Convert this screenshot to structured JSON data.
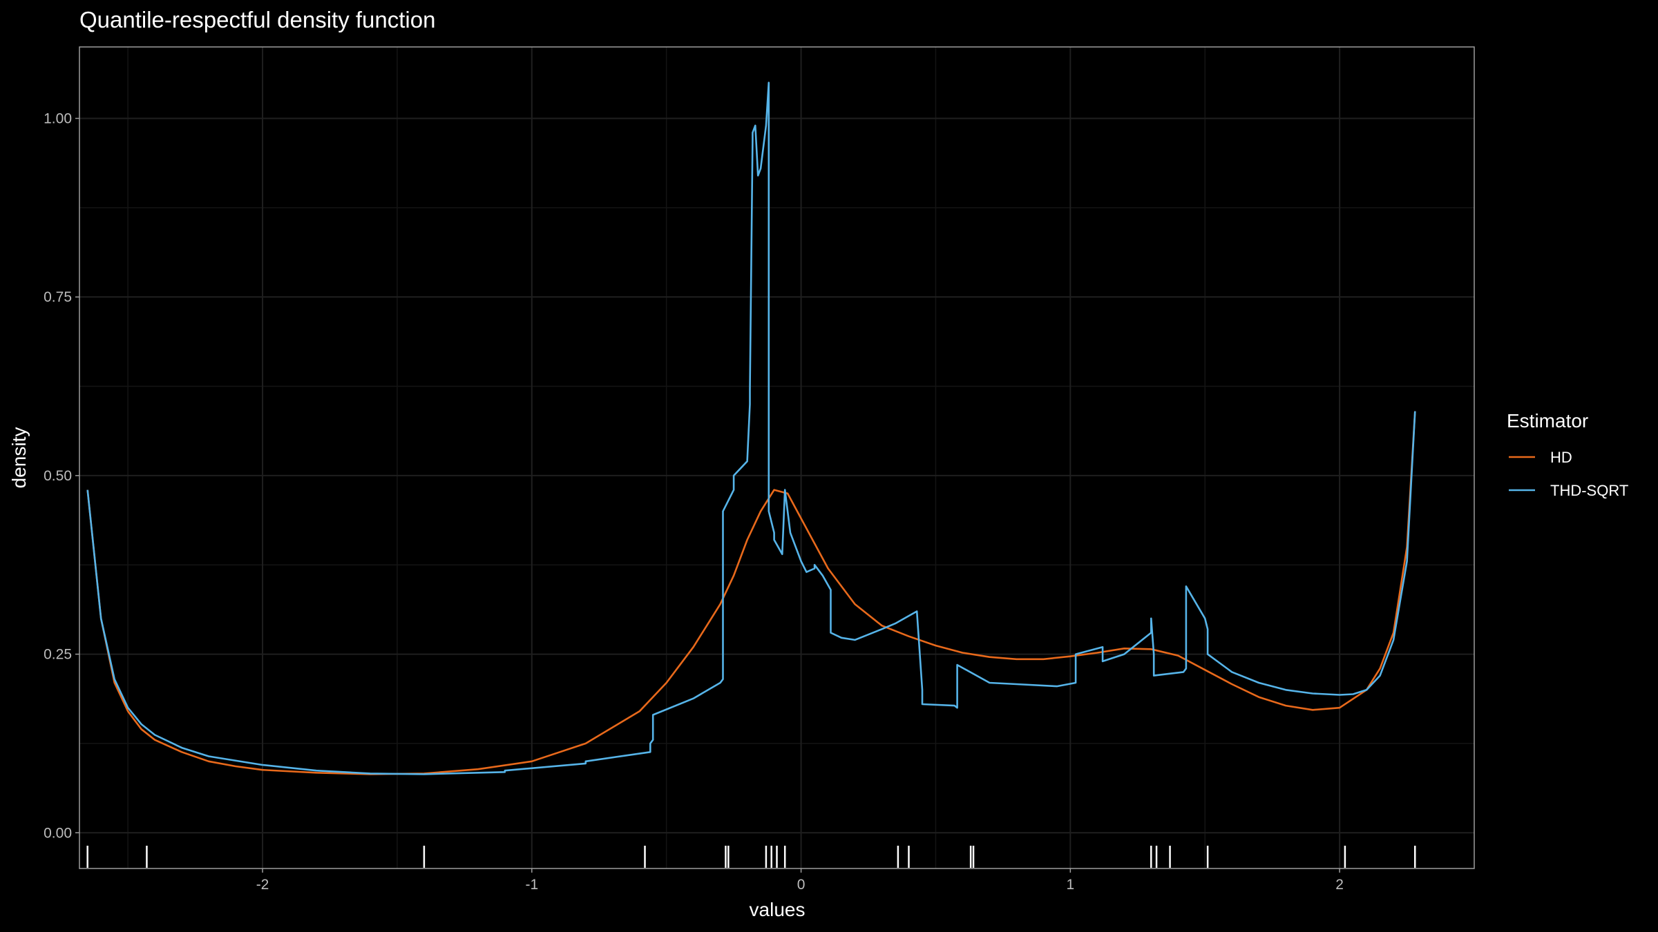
{
  "chart_data": {
    "type": "line",
    "title": "Quantile-respectful density function",
    "xlabel": "values",
    "ylabel": "density",
    "xlim": [
      -2.68,
      2.5
    ],
    "ylim": [
      -0.05,
      1.1
    ],
    "x_ticks": [
      -2,
      -1,
      0,
      1,
      2
    ],
    "x_tick_labels": [
      "-2",
      "-1",
      "0",
      "1",
      "2"
    ],
    "y_ticks": [
      0,
      0.25,
      0.5,
      0.75,
      1.0
    ],
    "y_tick_labels": [
      "0.00",
      "0.25",
      "0.50",
      "0.75",
      "1.00"
    ],
    "grid": true,
    "legend": {
      "title": "Estimator",
      "position": "right"
    },
    "rug": [
      -2.65,
      -2.43,
      -1.4,
      -0.58,
      -0.28,
      -0.27,
      -0.13,
      -0.11,
      -0.09,
      -0.06,
      0.36,
      0.4,
      0.63,
      0.64,
      1.3,
      1.32,
      1.37,
      1.51,
      2.02,
      2.28
    ],
    "series": [
      {
        "name": "HD",
        "color": "#e8691b",
        "x": [
          -2.65,
          -2.6,
          -2.55,
          -2.5,
          -2.45,
          -2.4,
          -2.3,
          -2.2,
          -2.1,
          -2.0,
          -1.8,
          -1.6,
          -1.4,
          -1.2,
          -1.0,
          -0.8,
          -0.6,
          -0.5,
          -0.4,
          -0.3,
          -0.25,
          -0.2,
          -0.15,
          -0.1,
          -0.05,
          0.0,
          0.1,
          0.2,
          0.3,
          0.4,
          0.5,
          0.6,
          0.7,
          0.8,
          0.9,
          1.0,
          1.1,
          1.2,
          1.3,
          1.4,
          1.5,
          1.6,
          1.7,
          1.8,
          1.9,
          2.0,
          2.1,
          2.15,
          2.2,
          2.25,
          2.28
        ],
        "y": [
          0.48,
          0.3,
          0.21,
          0.17,
          0.145,
          0.13,
          0.113,
          0.1,
          0.093,
          0.088,
          0.084,
          0.082,
          0.083,
          0.089,
          0.1,
          0.125,
          0.17,
          0.21,
          0.26,
          0.32,
          0.36,
          0.41,
          0.45,
          0.48,
          0.475,
          0.44,
          0.37,
          0.32,
          0.29,
          0.275,
          0.262,
          0.252,
          0.246,
          0.243,
          0.243,
          0.247,
          0.252,
          0.258,
          0.257,
          0.248,
          0.228,
          0.208,
          0.19,
          0.178,
          0.172,
          0.175,
          0.2,
          0.23,
          0.28,
          0.4,
          0.59
        ]
      },
      {
        "name": "THD-SQRT",
        "color": "#56b4e9",
        "x": [
          -2.65,
          -2.6,
          -2.55,
          -2.5,
          -2.45,
          -2.4,
          -2.3,
          -2.2,
          -2.0,
          -1.8,
          -1.6,
          -1.4,
          -1.1,
          -1.1,
          -0.8,
          -0.8,
          -0.56,
          -0.56,
          -0.55,
          -0.55,
          -0.4,
          -0.3,
          -0.29,
          -0.29,
          -0.25,
          -0.25,
          -0.2,
          -0.19,
          -0.19,
          -0.18,
          -0.18,
          -0.17,
          -0.16,
          -0.15,
          -0.13,
          -0.12,
          -0.12,
          -0.1,
          -0.1,
          -0.07,
          -0.06,
          -0.04,
          0.0,
          0.02,
          0.05,
          0.05,
          0.08,
          0.11,
          0.11,
          0.15,
          0.2,
          0.3,
          0.35,
          0.43,
          0.45,
          0.45,
          0.57,
          0.58,
          0.58,
          0.7,
          0.8,
          0.95,
          1.02,
          1.02,
          1.12,
          1.12,
          1.2,
          1.3,
          1.3,
          1.31,
          1.31,
          1.42,
          1.43,
          1.43,
          1.5,
          1.51,
          1.51,
          1.6,
          1.7,
          1.8,
          1.9,
          2.0,
          2.05,
          2.1,
          2.15,
          2.2,
          2.25,
          2.28
        ],
        "y": [
          0.48,
          0.3,
          0.215,
          0.175,
          0.152,
          0.137,
          0.119,
          0.107,
          0.095,
          0.087,
          0.083,
          0.082,
          0.085,
          0.087,
          0.097,
          0.1,
          0.113,
          0.125,
          0.13,
          0.165,
          0.188,
          0.21,
          0.215,
          0.45,
          0.48,
          0.5,
          0.52,
          0.6,
          0.62,
          0.97,
          0.98,
          0.99,
          0.92,
          0.93,
          0.99,
          1.05,
          0.45,
          0.42,
          0.41,
          0.39,
          0.48,
          0.42,
          0.38,
          0.365,
          0.37,
          0.375,
          0.36,
          0.34,
          0.28,
          0.273,
          0.27,
          0.285,
          0.293,
          0.31,
          0.2,
          0.18,
          0.178,
          0.175,
          0.235,
          0.21,
          0.208,
          0.205,
          0.21,
          0.25,
          0.26,
          0.24,
          0.25,
          0.28,
          0.3,
          0.25,
          0.22,
          0.225,
          0.23,
          0.345,
          0.3,
          0.285,
          0.25,
          0.225,
          0.21,
          0.2,
          0.195,
          0.193,
          0.194,
          0.2,
          0.22,
          0.27,
          0.38,
          0.59
        ]
      }
    ]
  }
}
